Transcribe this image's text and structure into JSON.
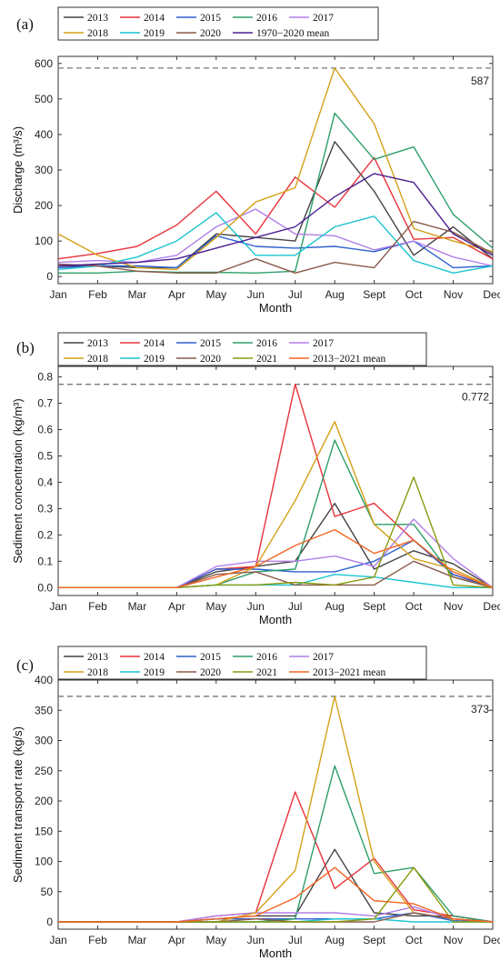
{
  "chart_data": [
    {
      "type": "line",
      "panel_label": "(a)",
      "xlabel": "Month",
      "ylabel": "Discharge (m³/s)",
      "categories": [
        "Jan",
        "Feb",
        "Mar",
        "Apr",
        "May",
        "Jun",
        "Jul",
        "Aug",
        "Sept",
        "Oct",
        "Nov",
        "Dec"
      ],
      "ylim": [
        -20,
        620
      ],
      "yticks": [
        0,
        100,
        200,
        300,
        400,
        500,
        600
      ],
      "reference_line": {
        "value": 587,
        "label": "587"
      },
      "legend_columns": 5,
      "series": [
        {
          "name": "2013",
          "color": "#444444",
          "values": [
            30,
            30,
            25,
            25,
            120,
            110,
            100,
            380,
            240,
            60,
            140,
            50
          ]
        },
        {
          "name": "2014",
          "color": "#e8333a",
          "values": [
            50,
            65,
            85,
            145,
            240,
            120,
            280,
            195,
            335,
            105,
            110,
            50
          ]
        },
        {
          "name": "2015",
          "color": "#2e5fd0",
          "values": [
            25,
            30,
            30,
            25,
            115,
            85,
            80,
            85,
            70,
            100,
            25,
            30
          ]
        },
        {
          "name": "2016",
          "color": "#2e9e6a",
          "values": [
            10,
            10,
            15,
            12,
            12,
            10,
            15,
            460,
            330,
            365,
            175,
            80
          ]
        },
        {
          "name": "2017",
          "color": "#b07ee8",
          "values": [
            40,
            45,
            40,
            60,
            140,
            190,
            120,
            115,
            75,
            100,
            55,
            30
          ]
        },
        {
          "name": "2018",
          "color": "#d4a017",
          "values": [
            120,
            60,
            25,
            20,
            110,
            210,
            250,
            587,
            430,
            135,
            100,
            70
          ]
        },
        {
          "name": "2019",
          "color": "#1cc4d0",
          "values": [
            20,
            30,
            55,
            100,
            180,
            60,
            60,
            140,
            170,
            45,
            10,
            30
          ]
        },
        {
          "name": "2020",
          "color": "#8b5a4a",
          "values": [
            35,
            30,
            15,
            10,
            10,
            50,
            10,
            40,
            25,
            155,
            125,
            65
          ]
        },
        {
          "name": "1970−2020 mean",
          "color": "#4b1f8f",
          "values": [
            30,
            35,
            40,
            50,
            80,
            110,
            140,
            225,
            290,
            265,
            120,
            60
          ]
        }
      ]
    },
    {
      "type": "line",
      "panel_label": "(b)",
      "xlabel": "Month",
      "ylabel": "Sediment concentration (kg/m³)",
      "categories": [
        "Jan",
        "Feb",
        "Mar",
        "Apr",
        "May",
        "Jun",
        "Jul",
        "Aug",
        "Sept",
        "Oct",
        "Nov",
        "Dec"
      ],
      "ylim": [
        -0.03,
        0.84
      ],
      "yticks": [
        0.0,
        0.1,
        0.2,
        0.3,
        0.4,
        0.5,
        0.6,
        0.7,
        0.8
      ],
      "ytick_labels": [
        "0.0",
        "0.1",
        "0.2",
        "0.3",
        "0.4",
        "0.5",
        "0.6",
        "0.7",
        "0.8"
      ],
      "reference_line": {
        "value": 0.772,
        "label": "0.772"
      },
      "legend_columns": 5,
      "series": [
        {
          "name": "2013",
          "color": "#444444",
          "values": [
            0,
            0,
            0,
            0,
            0.06,
            0.08,
            0.1,
            0.32,
            0.07,
            0.14,
            0.09,
            0
          ]
        },
        {
          "name": "2014",
          "color": "#e8333a",
          "values": [
            0,
            0,
            0,
            0,
            0.07,
            0.08,
            0.772,
            0.27,
            0.32,
            0.18,
            0.05,
            0
          ]
        },
        {
          "name": "2015",
          "color": "#2e5fd0",
          "values": [
            0,
            0,
            0,
            0,
            0.07,
            0.07,
            0.06,
            0.06,
            0.1,
            0.18,
            0.05,
            0
          ]
        },
        {
          "name": "2016",
          "color": "#2e9e6a",
          "values": [
            0,
            0,
            0,
            0,
            0.01,
            0.06,
            0.07,
            0.56,
            0.24,
            0.24,
            0.04,
            0
          ]
        },
        {
          "name": "2017",
          "color": "#b07ee8",
          "values": [
            0,
            0,
            0,
            0,
            0.08,
            0.1,
            0.1,
            0.12,
            0.08,
            0.26,
            0.11,
            0
          ]
        },
        {
          "name": "2018",
          "color": "#d4a017",
          "values": [
            0,
            0,
            0,
            0,
            0.01,
            0.08,
            0.33,
            0.63,
            0.24,
            0.11,
            0.07,
            0
          ]
        },
        {
          "name": "2019",
          "color": "#1cc4d0",
          "values": [
            0,
            0,
            0,
            0,
            0.01,
            0.01,
            0.01,
            0.05,
            0.04,
            0.02,
            0,
            0
          ]
        },
        {
          "name": "2020",
          "color": "#8b5a4a",
          "values": [
            0,
            0,
            0,
            0,
            0.05,
            0.06,
            0.01,
            0.01,
            0.01,
            0.1,
            0.04,
            0
          ]
        },
        {
          "name": "2021",
          "color": "#8a9a10",
          "values": [
            0,
            0,
            0,
            0,
            0.01,
            0.01,
            0.02,
            0.01,
            0.04,
            0.42,
            0.01,
            0
          ]
        },
        {
          "name": "2013−2021 mean",
          "color": "#f26522",
          "values": [
            0,
            0,
            0,
            0,
            0.04,
            0.08,
            0.16,
            0.22,
            0.13,
            0.18,
            0.06,
            0
          ]
        }
      ]
    },
    {
      "type": "line",
      "panel_label": "(c)",
      "xlabel": "Month",
      "ylabel": "Sediment transport rate (kg/s)",
      "categories": [
        "Jan",
        "Feb",
        "Mar",
        "Apr",
        "May",
        "Jun",
        "Jul",
        "Aug",
        "Sept",
        "Oct",
        "Nov",
        "Dec"
      ],
      "ylim": [
        -12,
        400
      ],
      "yticks": [
        0,
        50,
        100,
        150,
        200,
        250,
        300,
        350,
        400
      ],
      "reference_line": {
        "value": 373,
        "label": "373"
      },
      "legend_columns": 5,
      "series": [
        {
          "name": "2013",
          "color": "#444444",
          "values": [
            0,
            0,
            0,
            0,
            5,
            10,
            10,
            120,
            15,
            10,
            10,
            0
          ]
        },
        {
          "name": "2014",
          "color": "#e8333a",
          "values": [
            0,
            0,
            0,
            0,
            10,
            15,
            215,
            55,
            105,
            20,
            10,
            0
          ]
        },
        {
          "name": "2015",
          "color": "#2e5fd0",
          "values": [
            0,
            0,
            0,
            0,
            5,
            5,
            5,
            5,
            5,
            15,
            2,
            0
          ]
        },
        {
          "name": "2016",
          "color": "#2e9e6a",
          "values": [
            0,
            0,
            0,
            0,
            0,
            0,
            5,
            258,
            80,
            90,
            10,
            0
          ]
        },
        {
          "name": "2017",
          "color": "#b07ee8",
          "values": [
            0,
            0,
            0,
            0,
            10,
            15,
            15,
            15,
            10,
            25,
            5,
            0
          ]
        },
        {
          "name": "2018",
          "color": "#d4a017",
          "values": [
            0,
            0,
            0,
            0,
            0,
            15,
            85,
            373,
            100,
            15,
            5,
            0
          ]
        },
        {
          "name": "2019",
          "color": "#1cc4d0",
          "values": [
            0,
            0,
            0,
            0,
            0,
            0,
            0,
            5,
            5,
            0,
            0,
            0
          ]
        },
        {
          "name": "2020",
          "color": "#8b5a4a",
          "values": [
            0,
            0,
            0,
            0,
            0,
            5,
            0,
            0,
            0,
            15,
            5,
            0
          ]
        },
        {
          "name": "2021",
          "color": "#8a9a10",
          "values": [
            0,
            0,
            0,
            0,
            0,
            0,
            0,
            0,
            5,
            90,
            0,
            0
          ]
        },
        {
          "name": "2013−2021 mean",
          "color": "#f26522",
          "values": [
            0,
            0,
            0,
            0,
            5,
            10,
            40,
            90,
            35,
            30,
            5,
            0
          ]
        }
      ]
    }
  ]
}
